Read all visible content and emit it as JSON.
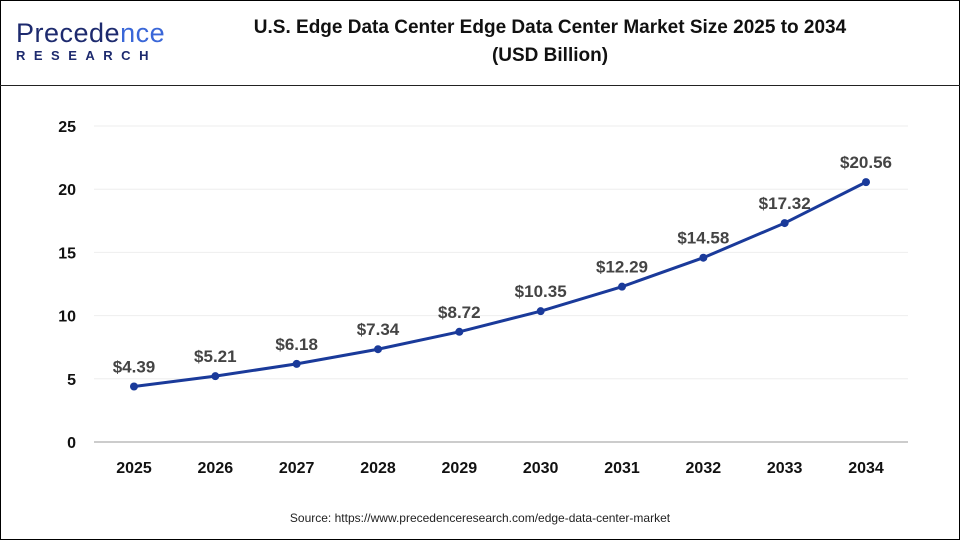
{
  "logo": {
    "line1_a": "P",
    "line1_b": "recede",
    "line1_c": "nce",
    "line2": "RESEARCH"
  },
  "source": "Source: https://www.precedenceresearch.com/edge-data-center-market",
  "colors": {
    "line": "#1a3a9a",
    "grid": "#eeeeee",
    "axis": "#bbbbbb"
  },
  "chart_data": {
    "type": "line",
    "title": [
      "U.S. Edge Data Center Edge Data Center Market Size 2025 to 2034",
      "(USD Billion)"
    ],
    "categories": [
      "2025",
      "2026",
      "2027",
      "2028",
      "2029",
      "2030",
      "2031",
      "2032",
      "2033",
      "2034"
    ],
    "values": [
      4.39,
      5.21,
      6.18,
      7.34,
      8.72,
      10.35,
      12.29,
      14.58,
      17.32,
      20.56
    ],
    "data_labels": [
      "$4.39",
      "$5.21",
      "$6.18",
      "$7.34",
      "$8.72",
      "$10.35",
      "$12.29",
      "$14.58",
      "$17.32",
      "$20.56"
    ],
    "yticks": [
      "0",
      "5",
      "10",
      "15",
      "20",
      "25"
    ],
    "ylim": [
      0,
      25
    ],
    "grid": true,
    "legend": "none"
  }
}
